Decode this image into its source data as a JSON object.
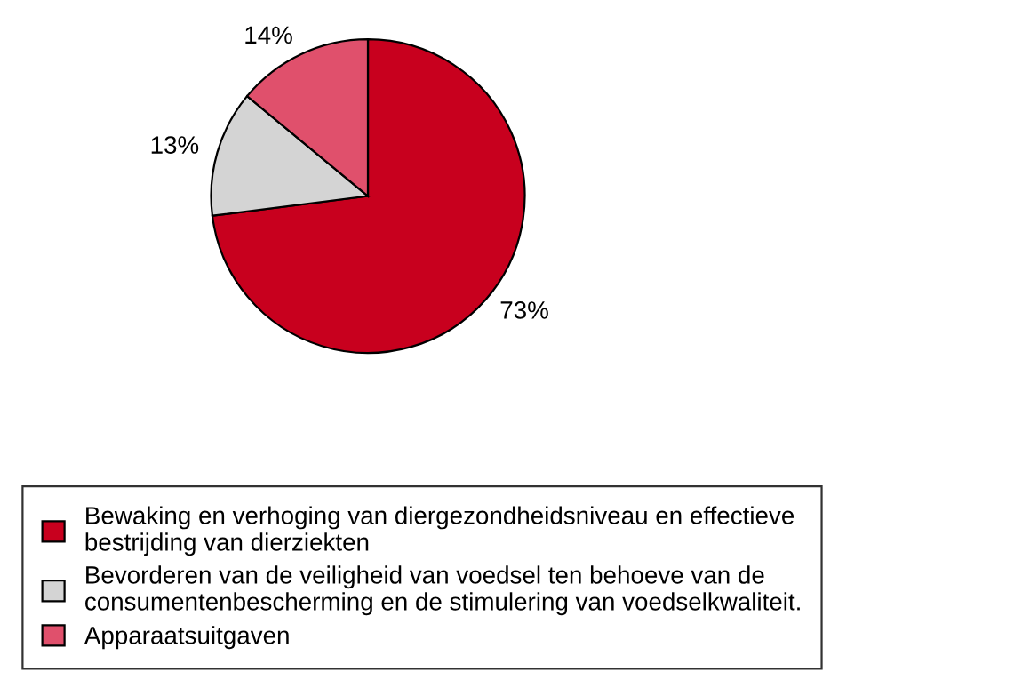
{
  "chart_data": {
    "type": "pie",
    "categories": [
      "Bewaking en verhoging van diergezondheidsniveau en effectieve\nbestrijding van dierziekten",
      "Bevorderen van de veiligheid van voedsel ten behoeve van de\nconsumentenbescherming en de stimulering van voedselkwaliteit.",
      "Apparaatsuitgaven"
    ],
    "values": [
      73,
      13,
      14
    ],
    "colors": [
      "#c8001e",
      "#d4d4d4",
      "#e0506c"
    ],
    "value_labels": [
      "73%",
      "13%",
      "14%"
    ],
    "legend": "bottom"
  }
}
